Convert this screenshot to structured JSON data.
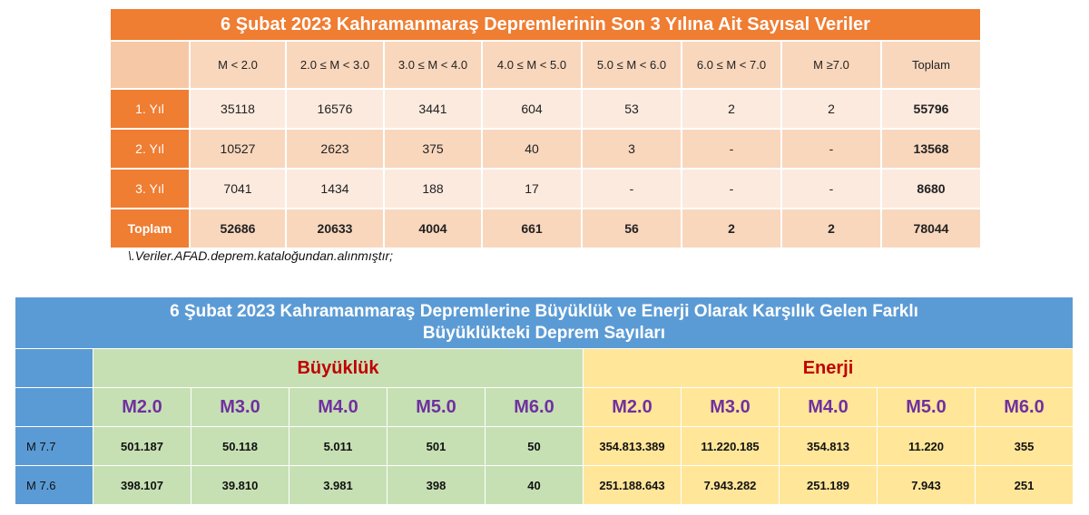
{
  "table1": {
    "title": "6 Şubat 2023 Kahramanmaraş Depremlerinin Son 3 Yılına Ait Sayısal Veriler",
    "headers": [
      "M < 2.0",
      "2.0 ≤ M < 3.0",
      "3.0 ≤ M < 4.0",
      "4.0 ≤ M < 5.0",
      "5.0 ≤ M < 6.0",
      "6.0 ≤ M < 7.0",
      "M ≥7.0",
      "Toplam"
    ],
    "rows": [
      {
        "label": "1. Yıl",
        "values": [
          "35118",
          "16576",
          "3441",
          "604",
          "53",
          "2",
          "2",
          "55796"
        ]
      },
      {
        "label": "2. Yıl",
        "values": [
          "10527",
          "2623",
          "375",
          "40",
          "3",
          "-",
          "-",
          "13568"
        ]
      },
      {
        "label": "3. Yıl",
        "values": [
          "7041",
          "1434",
          "188",
          "17",
          "-",
          "-",
          "-",
          "8680"
        ]
      }
    ],
    "total": {
      "label": "Toplam",
      "values": [
        "52686",
        "20633",
        "4004",
        "661",
        "56",
        "2",
        "2",
        "78044"
      ]
    }
  },
  "note": "\\.Veriler.AFAD.deprem.kataloğundan.alınmıştır;",
  "table2": {
    "title_line1": "6 Şubat 2023 Kahramanmaraş Depremlerine Büyüklük ve Enerji Olarak Karşılık Gelen Farklı",
    "title_line2": "Büyüklükteki Deprem Sayıları",
    "group_magnitude": "Büyüklük",
    "group_energy": "Enerji",
    "magnitudes": [
      "M2.0",
      "M3.0",
      "M4.0",
      "M5.0",
      "M6.0",
      "M2.0",
      "M3.0",
      "M4.0",
      "M5.0",
      "M6.0"
    ],
    "rows": [
      {
        "label": "M 7.7",
        "values": [
          "501.187",
          "50.118",
          "5.011",
          "501",
          "50",
          "354.813.389",
          "11.220.185",
          "354.813",
          "11.220",
          "355"
        ]
      },
      {
        "label": "M 7.6",
        "values": [
          "398.107",
          "39.810",
          "3.981",
          "398",
          "40",
          "251.188.643",
          "7.943.282",
          "251.189",
          "7.943",
          "251"
        ]
      }
    ]
  },
  "colors": {
    "orange_header": "#ef7d32",
    "orange_dark_cell": "#f9d7bd",
    "orange_light_cell": "#fceadf",
    "blue_header": "#5b9bd5",
    "green_cell": "#c6e0b4",
    "yellow_cell": "#ffe699",
    "group_text": "#c00000",
    "magnitude_text": "#7030a0"
  }
}
